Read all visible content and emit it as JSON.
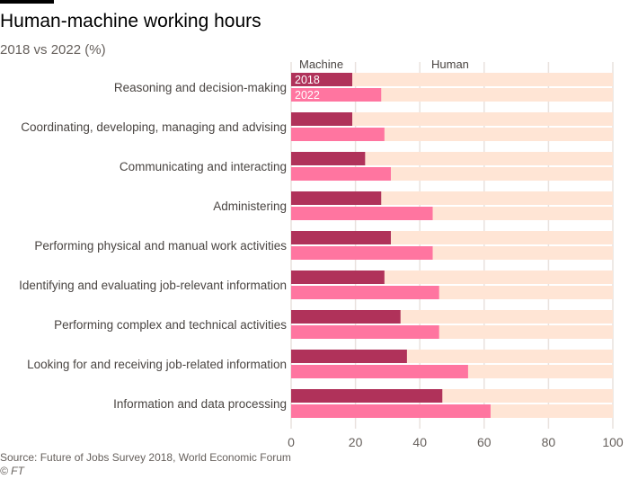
{
  "title": "Human-machine working hours",
  "subtitle": "2018 vs 2022 (%)",
  "source": "Source: Future of Jobs Survey 2018, World Economic Forum",
  "copyright": "© FT",
  "colors": {
    "machine_2018": "#b0325a",
    "machine_2022": "#ff75a0",
    "human": "#ffe5d5",
    "grid": "#e9e2de"
  },
  "chart_data": {
    "type": "bar",
    "orientation": "horizontal",
    "stacked_with_remainder": true,
    "title": "Human-machine working hours",
    "subtitle": "2018 vs 2022 (%)",
    "column_headers": {
      "machine": "Machine",
      "human": "Human"
    },
    "categories": [
      "Reasoning and decision-making",
      "Coordinating, developing, managing and advising",
      "Communicating and interacting",
      "Administering",
      "Performing physical and manual work activities",
      "Identifying and evaluating job-relevant information",
      "Performing complex and technical activities",
      "Looking for and receiving job-related information",
      "Information and data processing"
    ],
    "series": [
      {
        "name": "2018",
        "values": [
          19,
          19,
          23,
          28,
          31,
          29,
          34,
          36,
          47
        ]
      },
      {
        "name": "2022",
        "values": [
          28,
          29,
          31,
          44,
          44,
          46,
          46,
          55,
          62
        ]
      }
    ],
    "xlim": [
      0,
      100
    ],
    "xticks": [
      0,
      20,
      40,
      60,
      80,
      100
    ],
    "xtick_labels": [
      "0",
      "20",
      "40",
      "60",
      "80",
      "100"
    ],
    "grid": true,
    "legend": "inline on first bars"
  }
}
